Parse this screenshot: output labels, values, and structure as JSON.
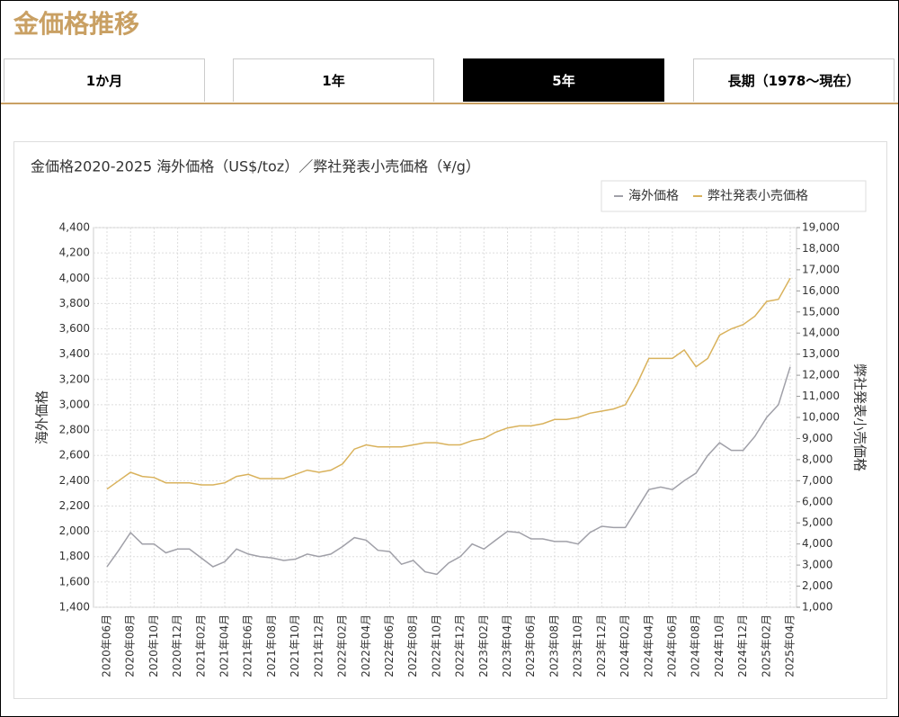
{
  "header": {
    "title": "金価格推移"
  },
  "tabs": {
    "items": [
      "1か月",
      "1年",
      "5年",
      "長期（1978〜現在）"
    ],
    "active": 2
  },
  "chart_data": {
    "type": "line",
    "title": "金価格2020-2025 海外価格（US$/toz）／弊社発表小売価格（¥/g）",
    "y_label": "海外価格",
    "y2_label": "弊社発表小売価格",
    "legend": "top-right",
    "grid": true,
    "categories": [
      "2020年06月",
      null,
      "2020年08月",
      null,
      "2020年10月",
      null,
      "2020年12月",
      null,
      "2021年02月",
      null,
      "2021年04月",
      null,
      "2021年06月",
      null,
      "2021年08月",
      null,
      "2021年10月",
      null,
      "2021年12月",
      null,
      "2022年02月",
      null,
      "2022年04月",
      null,
      "2022年06月",
      null,
      "2022年08月",
      null,
      "2022年10月",
      null,
      "2022年12月",
      null,
      "2023年02月",
      null,
      "2023年04月",
      null,
      "2023年06月",
      null,
      "2023年08月",
      null,
      "2023年10月",
      null,
      "2023年12月",
      null,
      "2024年02月",
      null,
      "2024年04月",
      null,
      "2024年06月",
      null,
      "2024年08月",
      null,
      "2024年10月",
      null,
      "2024年12月",
      null,
      "2025年02月",
      null,
      "2025年04月"
    ],
    "series": [
      {
        "name": "海外価格",
        "color": "#a0a0a8",
        "axis": "y",
        "values": [
          1720,
          1850,
          1990,
          1900,
          1900,
          1830,
          1860,
          1860,
          1790,
          1720,
          1760,
          1860,
          1820,
          1800,
          1790,
          1770,
          1780,
          1820,
          1800,
          1820,
          1880,
          1950,
          1930,
          1850,
          1840,
          1740,
          1770,
          1680,
          1660,
          1750,
          1800,
          1900,
          1860,
          1930,
          2000,
          1990,
          1940,
          1940,
          1920,
          1920,
          1900,
          1990,
          2040,
          2030,
          2030,
          2180,
          2330,
          2350,
          2330,
          2400,
          2460,
          2600,
          2700,
          2640,
          2640,
          2750,
          2900,
          3000,
          3300
        ]
      },
      {
        "name": "弊社発表小売価格",
        "color": "#d9b25c",
        "axis": "y2",
        "values": [
          6600,
          7000,
          7400,
          7200,
          7150,
          6900,
          6900,
          6900,
          6800,
          6800,
          6900,
          7200,
          7300,
          7100,
          7100,
          7100,
          7300,
          7500,
          7400,
          7500,
          7800,
          8500,
          8700,
          8600,
          8600,
          8600,
          8700,
          8800,
          8800,
          8700,
          8700,
          8900,
          9000,
          9300,
          9500,
          9600,
          9600,
          9700,
          9900,
          9900,
          10000,
          10200,
          10300,
          10400,
          10600,
          11600,
          12800,
          12800,
          12800,
          13200,
          12400,
          12800,
          13900,
          14200,
          14400,
          14800,
          15500,
          15600,
          16600
        ]
      }
    ],
    "ylim": [
      1400,
      4400
    ],
    "yticks": [
      {
        "value": 1400,
        "label": "1,400"
      },
      {
        "value": 1600,
        "label": "1,600"
      },
      {
        "value": 1800,
        "label": "1,800"
      },
      {
        "value": 2000,
        "label": "2,000"
      },
      {
        "value": 2200,
        "label": "2,200"
      },
      {
        "value": 2400,
        "label": "2,400"
      },
      {
        "value": 2600,
        "label": "2,600"
      },
      {
        "value": 2800,
        "label": "2,800"
      },
      {
        "value": 3000,
        "label": "3,000"
      },
      {
        "value": 3200,
        "label": "3,200"
      },
      {
        "value": 3400,
        "label": "3,400"
      },
      {
        "value": 3600,
        "label": "3,600"
      },
      {
        "value": 3800,
        "label": "3,800"
      },
      {
        "value": 4000,
        "label": "4,000"
      },
      {
        "value": 4200,
        "label": "4,200"
      },
      {
        "value": 4400,
        "label": "4,400"
      }
    ],
    "y2lim": [
      1000,
      19000
    ],
    "y2ticks": [
      {
        "value": 1000,
        "label": "1,000"
      },
      {
        "value": 2000,
        "label": "2,000"
      },
      {
        "value": 3000,
        "label": "3,000"
      },
      {
        "value": 4000,
        "label": "4,000"
      },
      {
        "value": 5000,
        "label": "5,000"
      },
      {
        "value": 6000,
        "label": "6,000"
      },
      {
        "value": 7000,
        "label": "7,000"
      },
      {
        "value": 8000,
        "label": "8,000"
      },
      {
        "value": 9000,
        "label": "9,000"
      },
      {
        "value": 10000,
        "label": "10,000"
      },
      {
        "value": 11000,
        "label": "11,000"
      },
      {
        "value": 12000,
        "label": "12,000"
      },
      {
        "value": 13000,
        "label": "13,000"
      },
      {
        "value": 14000,
        "label": "14,000"
      },
      {
        "value": 15000,
        "label": "15,000"
      },
      {
        "value": 16000,
        "label": "16,000"
      },
      {
        "value": 17000,
        "label": "17,000"
      },
      {
        "value": 18000,
        "label": "18,000"
      },
      {
        "value": 19000,
        "label": "19,000"
      }
    ]
  }
}
